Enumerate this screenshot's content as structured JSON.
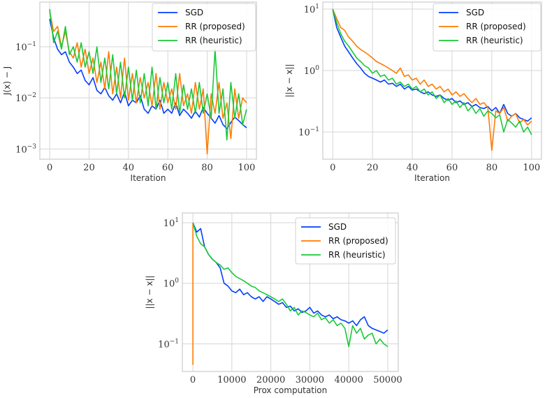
{
  "chart_data": [
    {
      "type": "line",
      "xlabel": "Iteration",
      "ylabel": "J(x) − J",
      "yscale": "log",
      "xlim": [
        -5,
        105
      ],
      "ylim": [
        0.00063,
        0.75
      ],
      "xticks": [
        0,
        20,
        40,
        60,
        80,
        100
      ],
      "yticks": [
        {
          "base": "10",
          "exp": "−3",
          "value": 0.001
        },
        {
          "base": "10",
          "exp": "−2",
          "value": 0.01
        },
        {
          "base": "10",
          "exp": "−1",
          "value": 0.1
        }
      ],
      "grid": true,
      "legend": "top-right",
      "series": [
        {
          "name": "SGD",
          "color": "#023eff",
          "x_start": 0,
          "x_step": 2,
          "y": [
            0.35,
            0.15,
            0.09,
            0.07,
            0.08,
            0.05,
            0.04,
            0.03,
            0.035,
            0.022,
            0.018,
            0.025,
            0.014,
            0.012,
            0.016,
            0.011,
            0.009,
            0.012,
            0.008,
            0.013,
            0.007,
            0.009,
            0.008,
            0.011,
            0.006,
            0.005,
            0.007,
            0.006,
            0.009,
            0.005,
            0.006,
            0.005,
            0.008,
            0.0045,
            0.006,
            0.005,
            0.004,
            0.0055,
            0.0042,
            0.0065,
            0.005,
            0.004,
            0.0032,
            0.0045,
            0.003,
            0.0025,
            0.0033,
            0.0042,
            0.0036,
            0.003,
            0.0026
          ]
        },
        {
          "name": "RR (proposed)",
          "color": "#ff7c00",
          "x_start": 0,
          "x_step": 2,
          "y": [
            0.5,
            0.2,
            0.25,
            0.1,
            0.2,
            0.08,
            0.06,
            0.12,
            0.04,
            0.09,
            0.03,
            0.06,
            0.02,
            0.05,
            0.015,
            0.08,
            0.012,
            0.04,
            0.01,
            0.06,
            0.009,
            0.03,
            0.008,
            0.025,
            0.01,
            0.02,
            0.007,
            0.03,
            0.006,
            0.02,
            0.008,
            0.015,
            0.006,
            0.03,
            0.007,
            0.012,
            0.005,
            0.02,
            0.006,
            0.015,
            0.0008,
            0.012,
            0.005,
            0.02,
            0.004,
            0.008,
            0.0016,
            0.015,
            0.004,
            0.01,
            0.008
          ]
        },
        {
          "name": "RR (heuristic)",
          "color": "#1ac938",
          "x_start": 0,
          "x_step": 2,
          "y": [
            0.55,
            0.12,
            0.2,
            0.09,
            0.25,
            0.07,
            0.1,
            0.05,
            0.12,
            0.04,
            0.08,
            0.03,
            0.1,
            0.02,
            0.06,
            0.015,
            0.07,
            0.012,
            0.05,
            0.01,
            0.04,
            0.009,
            0.035,
            0.008,
            0.03,
            0.007,
            0.04,
            0.006,
            0.025,
            0.008,
            0.02,
            0.006,
            0.03,
            0.005,
            0.018,
            0.006,
            0.015,
            0.005,
            0.02,
            0.005,
            0.012,
            0.004,
            0.09,
            0.005,
            0.015,
            0.0015,
            0.02,
            0.004,
            0.012,
            0.003,
            0.006
          ]
        }
      ]
    },
    {
      "type": "line",
      "xlabel": "Iteration",
      "ylabel": "||x − x||",
      "yscale": "log",
      "xlim": [
        -5,
        105
      ],
      "ylim": [
        0.036,
        13
      ],
      "xticks": [
        0,
        20,
        40,
        60,
        80,
        100
      ],
      "yticks": [
        {
          "base": "10",
          "exp": "−1",
          "value": 0.1
        },
        {
          "base": "10",
          "exp": "0",
          "value": 1
        },
        {
          "base": "10",
          "exp": "1",
          "value": 10
        }
      ],
      "grid": true,
      "legend": "top-right",
      "series": [
        {
          "name": "SGD",
          "color": "#023eff",
          "x_start": 0,
          "x_step": 2,
          "y": [
            10,
            5,
            3.5,
            2.5,
            2,
            1.6,
            1.3,
            1.1,
            0.9,
            0.8,
            0.75,
            0.7,
            0.65,
            0.7,
            0.6,
            0.62,
            0.55,
            0.6,
            0.5,
            0.55,
            0.48,
            0.5,
            0.45,
            0.42,
            0.45,
            0.4,
            0.38,
            0.4,
            0.35,
            0.33,
            0.35,
            0.3,
            0.32,
            0.28,
            0.3,
            0.26,
            0.28,
            0.25,
            0.24,
            0.26,
            0.22,
            0.25,
            0.2,
            0.28,
            0.2,
            0.18,
            0.2,
            0.17,
            0.16,
            0.15,
            0.17
          ]
        },
        {
          "name": "RR (proposed)",
          "color": "#ff7c00",
          "x_start": 0,
          "x_step": 2,
          "y": [
            10,
            7,
            5,
            4.5,
            3.5,
            3,
            2.5,
            2.2,
            2,
            1.8,
            1.6,
            1.4,
            1.3,
            1.2,
            1.1,
            1,
            0.9,
            1.1,
            0.8,
            0.85,
            0.7,
            0.75,
            0.6,
            0.7,
            0.55,
            0.6,
            0.5,
            0.55,
            0.45,
            0.5,
            0.4,
            0.45,
            0.38,
            0.42,
            0.35,
            0.3,
            0.35,
            0.28,
            0.3,
            0.25,
            0.05,
            0.22,
            0.2,
            0.25,
            0.15,
            0.18,
            0.2,
            0.14,
            0.16,
            0.13,
            0.15
          ]
        },
        {
          "name": "RR (heuristic)",
          "color": "#1ac938",
          "x_start": 0,
          "x_step": 2,
          "y": [
            10,
            6,
            4,
            3,
            2.5,
            2,
            1.6,
            1.4,
            1.2,
            1.1,
            0.9,
            1,
            0.8,
            0.85,
            0.7,
            0.75,
            0.6,
            0.65,
            0.55,
            0.6,
            0.5,
            0.55,
            0.45,
            0.5,
            0.4,
            0.45,
            0.35,
            0.4,
            0.3,
            0.35,
            0.28,
            0.32,
            0.25,
            0.3,
            0.22,
            0.26,
            0.2,
            0.24,
            0.18,
            0.22,
            0.2,
            0.17,
            0.19,
            0.1,
            0.16,
            0.14,
            0.12,
            0.15,
            0.1,
            0.12,
            0.09
          ]
        }
      ]
    },
    {
      "type": "line",
      "xlabel": "Prox computation",
      "ylabel": "||x − x||",
      "yscale": "log",
      "xlim": [
        -2700,
        52700
      ],
      "ylim": [
        0.035,
        14.5
      ],
      "xticks": [
        0,
        10000,
        20000,
        30000,
        40000,
        50000
      ],
      "yticks": [
        {
          "base": "10",
          "exp": "−1",
          "value": 0.1
        },
        {
          "base": "10",
          "exp": "0",
          "value": 1
        },
        {
          "base": "10",
          "exp": "1",
          "value": 10
        }
      ],
      "grid": true,
      "legend": "top-right",
      "series": [
        {
          "name": "SGD",
          "color": "#023eff",
          "x_start": 0,
          "x_step": 1000,
          "y": [
            10,
            7,
            8,
            4,
            3,
            2.5,
            2.2,
            1.8,
            1,
            0.9,
            0.75,
            0.7,
            0.8,
            0.65,
            0.7,
            0.6,
            0.55,
            0.6,
            0.5,
            0.6,
            0.55,
            0.5,
            0.45,
            0.48,
            0.4,
            0.42,
            0.35,
            0.38,
            0.33,
            0.35,
            0.4,
            0.32,
            0.35,
            0.3,
            0.28,
            0.3,
            0.26,
            0.28,
            0.25,
            0.24,
            0.22,
            0.24,
            0.2,
            0.25,
            0.28,
            0.2,
            0.18,
            0.17,
            0.16,
            0.15,
            0.17
          ]
        },
        {
          "name": "RR (proposed)",
          "color": "#ff7c00",
          "x_start": 0,
          "x_step": 0,
          "y": [
            10,
            0.045
          ]
        },
        {
          "name": "RR (heuristic)",
          "color": "#1ac938",
          "x_start": 0,
          "x_step": 1000,
          "y": [
            10,
            6,
            4.5,
            4,
            3,
            2.5,
            2.2,
            2,
            1.7,
            1.8,
            1.5,
            1.3,
            1.2,
            1.1,
            1,
            0.9,
            0.85,
            0.75,
            0.7,
            0.65,
            0.6,
            0.55,
            0.5,
            0.55,
            0.45,
            0.35,
            0.4,
            0.3,
            0.35,
            0.33,
            0.3,
            0.28,
            0.32,
            0.25,
            0.27,
            0.22,
            0.25,
            0.2,
            0.22,
            0.18,
            0.09,
            0.2,
            0.15,
            0.18,
            0.12,
            0.14,
            0.15,
            0.1,
            0.12,
            0.1,
            0.09
          ]
        }
      ]
    }
  ]
}
